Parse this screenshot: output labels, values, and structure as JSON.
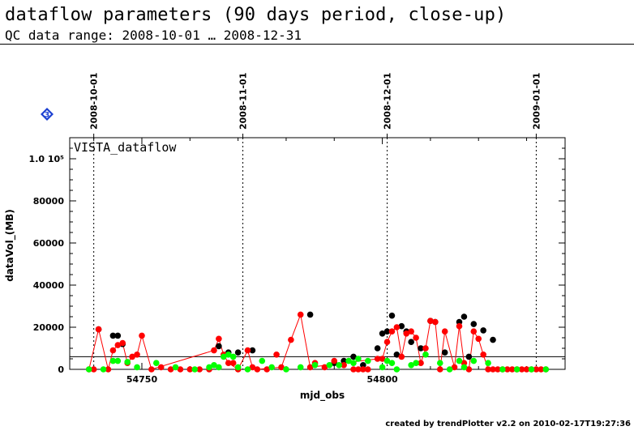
{
  "header": {
    "title": "dataflow parameters (90 days period, close-up)",
    "subtitle": "QC data range: 2008-10-01 … 2008-12-31"
  },
  "badge": {
    "label": "3",
    "color": "#1a3fd1"
  },
  "footer": {
    "text": "created by trendPlotter v2.2 on 2010-02-17T19:27:36"
  },
  "chart_data": {
    "type": "scatter",
    "title": "VISTA_dataflow",
    "xlabel": "mjd_obs",
    "ylabel": "dataVol_(MB)",
    "xlim": [
      54735,
      54838
    ],
    "ylim": [
      0,
      110000
    ],
    "grid": false,
    "y_ticks": [
      {
        "value": 0,
        "label": "0"
      },
      {
        "value": 20000,
        "label": "20000"
      },
      {
        "value": 40000,
        "label": "40000"
      },
      {
        "value": 60000,
        "label": "60000"
      },
      {
        "value": 80000,
        "label": "80000"
      },
      {
        "value": 100000,
        "label": "1.0 10⁵"
      }
    ],
    "x_ticks": [
      {
        "value": 54750,
        "label": "54750"
      },
      {
        "value": 54800,
        "label": "54800"
      }
    ],
    "date_markers": [
      {
        "x": 54740,
        "label": "2008-10-01"
      },
      {
        "x": 54771,
        "label": "2008-11-01"
      },
      {
        "x": 54801,
        "label": "2008-12-01"
      },
      {
        "x": 54832,
        "label": "2009-01-01"
      }
    ],
    "reference_line": {
      "y": 6000
    },
    "series": [
      {
        "color": "#000000",
        "x": [
          54741,
          54744,
          54745,
          54746,
          54766,
          54768,
          54770,
          54773,
          54785,
          54790,
          54792,
          54794,
          54796,
          54799,
          54800,
          54801,
          54802,
          54803,
          54804,
          54805,
          54806,
          54808,
          54810,
          54811,
          54813,
          54816,
          54817,
          54818,
          54819,
          54821,
          54823
        ],
        "y": [
          19000,
          16000,
          16000,
          12000,
          11000,
          8000,
          8000,
          9000,
          26000,
          3000,
          4000,
          6000,
          2000,
          10000,
          17000,
          18000,
          25500,
          7000,
          20500,
          18000,
          13000,
          10000,
          23000,
          22500,
          8000,
          22500,
          25000,
          6000,
          21500,
          18500,
          14000
        ]
      },
      {
        "color": "#ff0000",
        "x": [
          54739,
          54740,
          54741,
          54743,
          54744,
          54745,
          54746,
          54747,
          54748,
          54749,
          54750,
          54752,
          54754,
          54756,
          54758,
          54760,
          54762,
          54764,
          54765,
          54766,
          54767,
          54768,
          54769,
          54770,
          54772,
          54773,
          54774,
          54776,
          54778,
          54779,
          54781,
          54783,
          54785,
          54786,
          54788,
          54790,
          54792,
          54794,
          54795,
          54796,
          54797,
          54799,
          54800,
          54801,
          54802,
          54803,
          54804,
          54805,
          54806,
          54807,
          54808,
          54809,
          54810,
          54811,
          54812,
          54813,
          54815,
          54816,
          54817,
          54818,
          54819,
          54820,
          54821,
          54822,
          54823,
          54824,
          54825,
          54826,
          54827,
          54828,
          54829,
          54830,
          54831,
          54832,
          54833,
          54834
        ],
        "y": [
          0,
          0,
          19000,
          0,
          9000,
          11500,
          12500,
          3000,
          6000,
          7000,
          16000,
          0,
          1000,
          0,
          0,
          0,
          0,
          0,
          9000,
          14500,
          7000,
          3000,
          3000,
          0,
          9000,
          1000,
          0,
          0,
          7000,
          1000,
          14000,
          26000,
          1000,
          3000,
          1000,
          4000,
          2000,
          0,
          0,
          0,
          0,
          5000,
          5000,
          13000,
          18000,
          20000,
          6000,
          17000,
          18000,
          15000,
          3000,
          10000,
          23000,
          22500,
          0,
          18000,
          1000,
          20500,
          3000,
          0,
          18000,
          14500,
          7000,
          0,
          0,
          0,
          0,
          0,
          0,
          0,
          0,
          0,
          0,
          0,
          0,
          0
        ]
      },
      {
        "color": "#00ff00",
        "x": [
          54739,
          54742,
          54744,
          54745,
          54747,
          54749,
          54753,
          54757,
          54761,
          54764,
          54765,
          54766,
          54767,
          54768,
          54769,
          54770,
          54772,
          54775,
          54777,
          54780,
          54783,
          54786,
          54789,
          54791,
          54793,
          54794,
          54795,
          54797,
          54800,
          54801,
          54802,
          54803,
          54806,
          54807,
          54809,
          54812,
          54814,
          54816,
          54817,
          54819,
          54822,
          54825,
          54828,
          54831,
          54834
        ],
        "y": [
          0,
          0,
          4000,
          4000,
          3500,
          1000,
          3000,
          1000,
          0,
          1000,
          2000,
          1000,
          6000,
          7000,
          6000,
          1000,
          0,
          4000,
          1000,
          0,
          1000,
          2000,
          2000,
          2000,
          4000,
          3000,
          5000,
          4000,
          1000,
          4000,
          3000,
          0,
          2000,
          3000,
          7000,
          3000,
          0,
          4000,
          1000,
          4000,
          3000,
          0,
          0,
          0,
          0
        ]
      },
      {
        "color": "#ff0000",
        "mode": "line",
        "x": [
          54739,
          54741,
          54743,
          54744,
          54745,
          54746,
          54747,
          54748,
          54749,
          54750,
          54752,
          54765,
          54766,
          54767,
          54768,
          54770,
          54772,
          54773,
          54774,
          54779,
          54781,
          54783,
          54785,
          54799,
          54800,
          54801,
          54802,
          54803,
          54804,
          54805,
          54806,
          54807,
          54808,
          54809,
          54810,
          54811,
          54812,
          54813,
          54815,
          54816,
          54817,
          54818,
          54819,
          54820,
          54821,
          54822,
          54834
        ],
        "y": [
          0,
          19000,
          0,
          9000,
          11500,
          12500,
          3000,
          6000,
          7000,
          16000,
          0,
          9000,
          14500,
          7000,
          3000,
          0,
          9000,
          1000,
          0,
          1000,
          14000,
          26000,
          1000,
          5000,
          5000,
          13000,
          18000,
          20000,
          6000,
          17000,
          18000,
          15000,
          3000,
          10000,
          23000,
          22500,
          0,
          18000,
          1000,
          20500,
          3000,
          0,
          18000,
          14500,
          7000,
          0,
          0
        ]
      }
    ]
  }
}
